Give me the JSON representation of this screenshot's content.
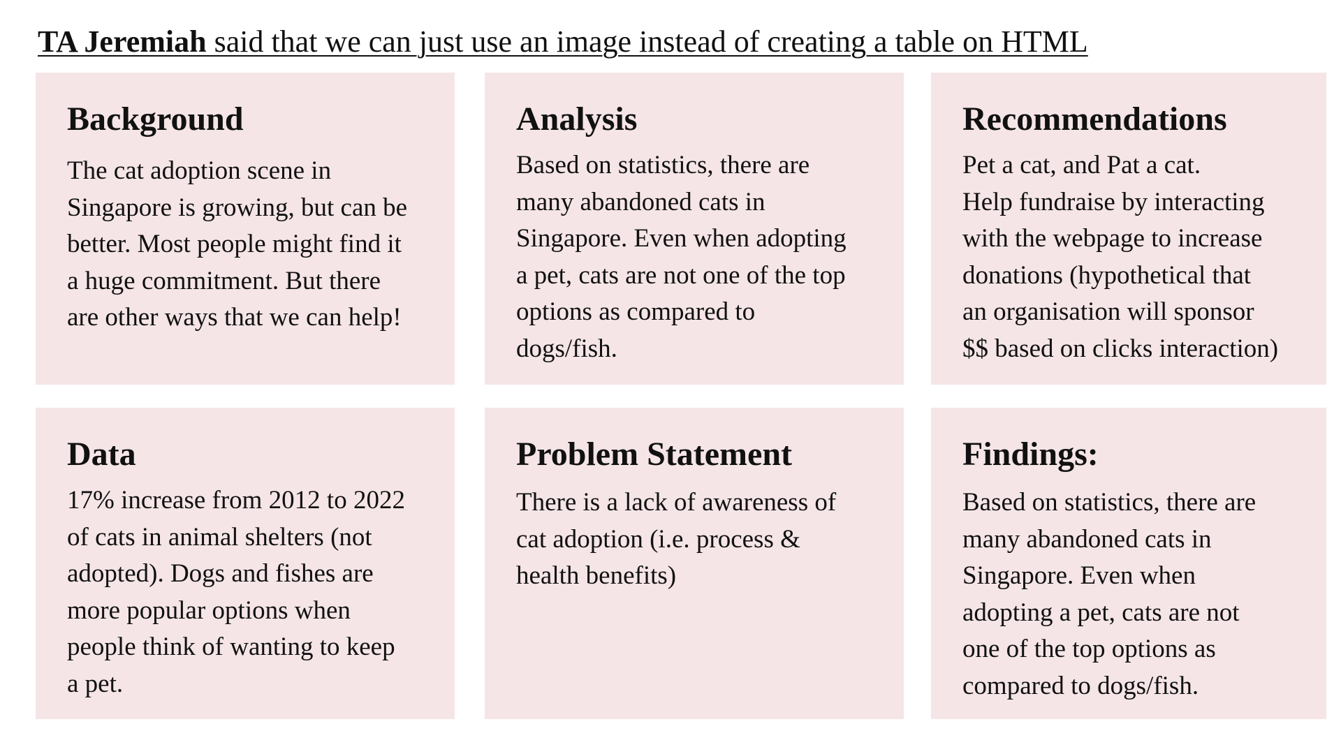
{
  "header": {
    "bold_part": "TA Jeremiah",
    "rest": " said that we can just use an image instead of creating a table on HTML"
  },
  "cards": {
    "background": {
      "title": "Background",
      "body": "The cat adoption scene in\nSingapore is growing, but can be\nbetter. Most people might find it\na huge commitment. But there\nare other ways that we can help!"
    },
    "analysis": {
      "title": "Analysis",
      "body": "Based on statistics, there are\nmany abandoned cats in\nSingapore. Even when adopting\na pet, cats are not one of the top\noptions as compared to\ndogs/fish."
    },
    "recommendations": {
      "title": "Recommendations",
      "body": "Pet a cat, and Pat a cat.\nHelp fundraise by interacting\nwith the webpage to increase\ndonations (hypothetical that\nan organisation will sponsor\n$$ based on clicks interaction)"
    },
    "data": {
      "title": "Data",
      "body": "17% increase from 2012 to 2022\nof cats in animal shelters (not\nadopted). Dogs and fishes are\nmore popular options when\npeople think of wanting to keep\na pet."
    },
    "problem": {
      "title": "Problem Statement",
      "body": "There is a lack of awareness of\ncat adoption (i.e. process &\nhealth benefits)"
    },
    "findings": {
      "title": "Findings:",
      "body": "Based on statistics, there are\nmany abandoned cats in\nSingapore. Even when\nadopting a pet, cats are not\none of the top options as\ncompared to dogs/fish."
    }
  },
  "colors": {
    "card_background": "#f5e5e7",
    "text": "#111111"
  }
}
